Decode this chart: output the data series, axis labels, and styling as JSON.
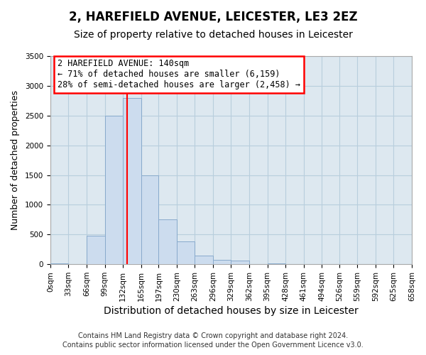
{
  "title": "2, HAREFIELD AVENUE, LEICESTER, LE3 2EZ",
  "subtitle": "Size of property relative to detached houses in Leicester",
  "bar_edges": [
    0,
    33,
    66,
    99,
    132,
    165,
    197,
    230,
    263,
    296,
    329,
    362,
    395,
    428,
    461,
    494,
    526,
    559,
    592,
    625,
    658
  ],
  "bar_heights": [
    20,
    0,
    480,
    2500,
    2800,
    1500,
    750,
    390,
    150,
    80,
    60,
    0,
    20,
    0,
    0,
    0,
    0,
    0,
    0,
    0
  ],
  "bar_color": "#ccdcee",
  "bar_edgecolor": "#88aacc",
  "vline_x": 140,
  "vline_color": "red",
  "annotation_title": "2 HAREFIELD AVENUE: 140sqm",
  "annotation_line1": "← 71% of detached houses are smaller (6,159)",
  "annotation_line2": "28% of semi-detached houses are larger (2,458) →",
  "annotation_box_color": "red",
  "xlabel": "Distribution of detached houses by size in Leicester",
  "ylabel": "Number of detached properties",
  "ylim": [
    0,
    3500
  ],
  "yticks": [
    0,
    500,
    1000,
    1500,
    2000,
    2500,
    3000,
    3500
  ],
  "xtick_labels": [
    "0sqm",
    "33sqm",
    "66sqm",
    "99sqm",
    "132sqm",
    "165sqm",
    "197sqm",
    "230sqm",
    "263sqm",
    "296sqm",
    "329sqm",
    "362sqm",
    "395sqm",
    "428sqm",
    "461sqm",
    "494sqm",
    "526sqm",
    "559sqm",
    "592sqm",
    "625sqm",
    "658sqm"
  ],
  "footer1": "Contains HM Land Registry data © Crown copyright and database right 2024.",
  "footer2": "Contains public sector information licensed under the Open Government Licence v3.0.",
  "fig_bg_color": "#ffffff",
  "plot_bg_color": "#dde8f0",
  "grid_color": "#b8cedd",
  "title_fontsize": 12,
  "subtitle_fontsize": 10,
  "xlabel_fontsize": 10,
  "ylabel_fontsize": 9,
  "tick_fontsize": 7.5,
  "footer_fontsize": 7,
  "ann_fontsize": 8.5
}
